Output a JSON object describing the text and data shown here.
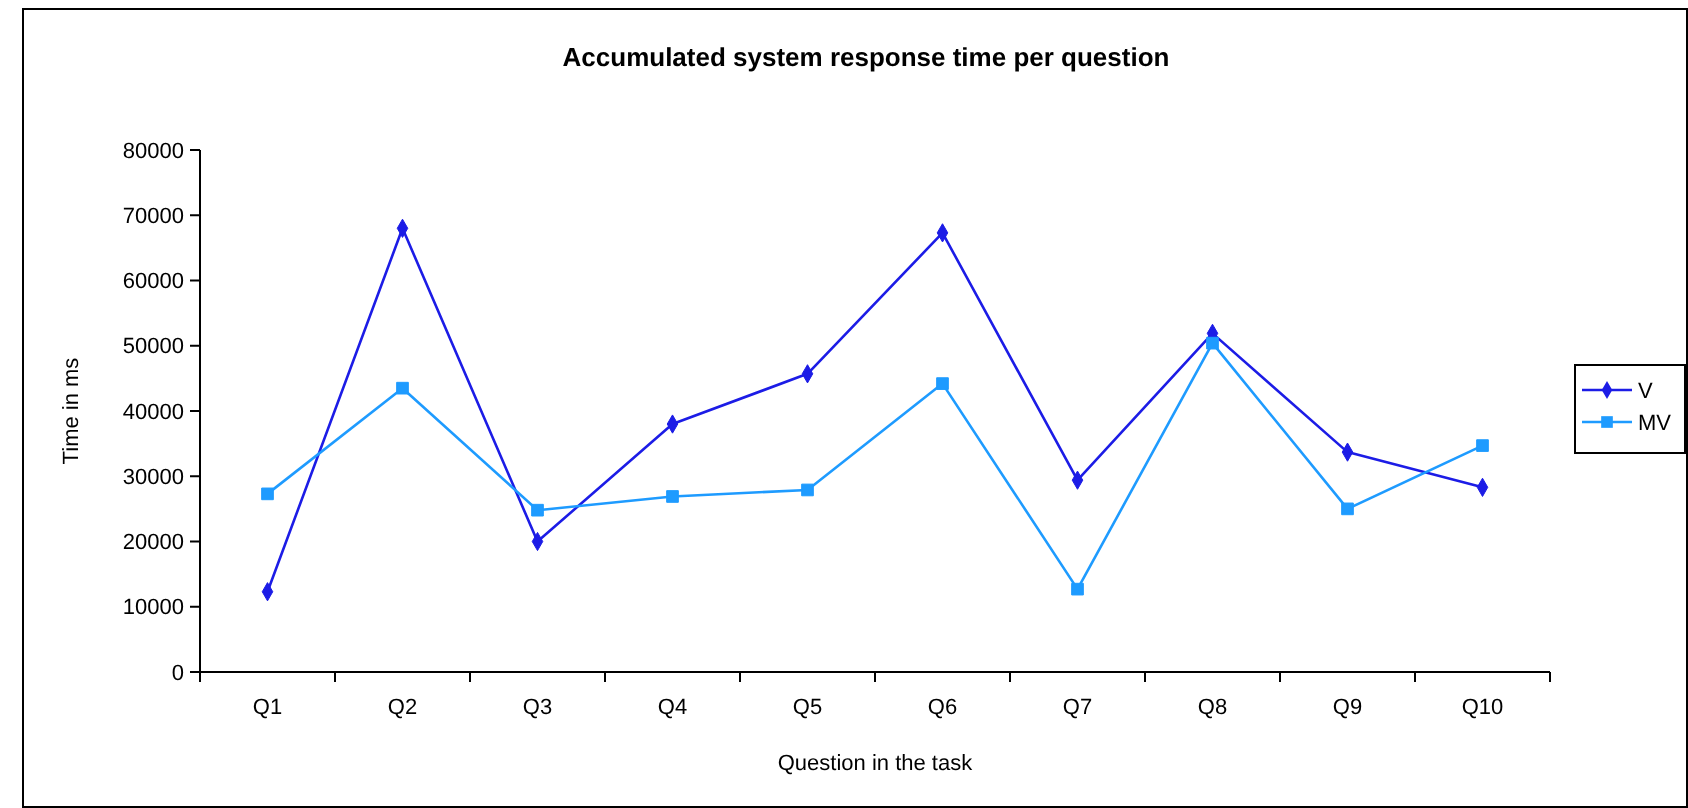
{
  "chart_data": {
    "type": "line",
    "title": "Accumulated system response time per question",
    "xlabel": "Question in the task",
    "ylabel": "Time in ms",
    "categories": [
      "Q1",
      "Q2",
      "Q3",
      "Q4",
      "Q5",
      "Q6",
      "Q7",
      "Q8",
      "Q9",
      "Q10"
    ],
    "series": [
      {
        "name": "V",
        "color": "#1c1ce6",
        "marker": "diamond",
        "values": [
          12300,
          68000,
          20000,
          38000,
          45700,
          67300,
          29400,
          51900,
          33700,
          28300
        ]
      },
      {
        "name": "MV",
        "color": "#1e9bff",
        "marker": "square",
        "values": [
          27300,
          43500,
          24800,
          26900,
          27900,
          44200,
          12700,
          50400,
          25000,
          34700
        ]
      }
    ],
    "ylim": [
      0,
      80000
    ],
    "yticks": [
      0,
      10000,
      20000,
      30000,
      40000,
      50000,
      60000,
      70000,
      80000
    ],
    "legend": "right"
  }
}
